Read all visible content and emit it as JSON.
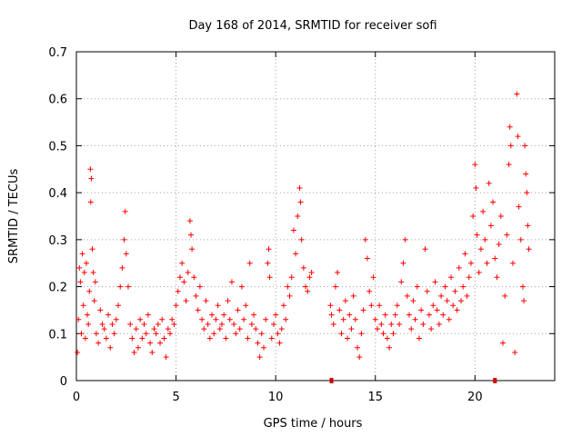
{
  "chart_data": {
    "type": "scatter",
    "title": "Day 168 of 2014, SRMTID for receiver sofi",
    "xlabel": "GPS time / hours",
    "ylabel": "SRMTID / TECUs",
    "xlim": [
      0,
      24
    ],
    "ylim": [
      0,
      0.7
    ],
    "xticks": [
      0,
      5,
      10,
      15,
      20
    ],
    "xtick_labels": [
      "0",
      "5",
      "10",
      "15",
      "20"
    ],
    "yticks": [
      0,
      0.1,
      0.2,
      0.3,
      0.4,
      0.5,
      0.6,
      0.7
    ],
    "ytick_labels": [
      "0",
      "0.1",
      "0.2",
      "0.3",
      "0.4",
      "0.5",
      "0.6",
      "0.7"
    ],
    "grid": true,
    "marker": "plus",
    "color": "#ff0000",
    "series": [
      {
        "name": "SRMTID",
        "points": [
          [
            0.05,
            0.06
          ],
          [
            0.1,
            0.13
          ],
          [
            0.15,
            0.24
          ],
          [
            0.2,
            0.21
          ],
          [
            0.25,
            0.1
          ],
          [
            0.3,
            0.27
          ],
          [
            0.35,
            0.16
          ],
          [
            0.4,
            0.23
          ],
          [
            0.45,
            0.09
          ],
          [
            0.5,
            0.25
          ],
          [
            0.55,
            0.14
          ],
          [
            0.6,
            0.12
          ],
          [
            0.65,
            0.19
          ],
          [
            0.7,
            0.45
          ],
          [
            0.72,
            0.38
          ],
          [
            0.75,
            0.43
          ],
          [
            0.8,
            0.28
          ],
          [
            0.85,
            0.23
          ],
          [
            0.9,
            0.17
          ],
          [
            0.95,
            0.21
          ],
          [
            1.0,
            0.1
          ],
          [
            1.1,
            0.08
          ],
          [
            1.2,
            0.15
          ],
          [
            1.3,
            0.12
          ],
          [
            1.4,
            0.11
          ],
          [
            1.5,
            0.09
          ],
          [
            1.6,
            0.14
          ],
          [
            1.7,
            0.07
          ],
          [
            1.8,
            0.12
          ],
          [
            1.9,
            0.1
          ],
          [
            2.0,
            0.13
          ],
          [
            2.1,
            0.16
          ],
          [
            2.2,
            0.2
          ],
          [
            2.3,
            0.24
          ],
          [
            2.4,
            0.3
          ],
          [
            2.45,
            0.36
          ],
          [
            2.5,
            0.27
          ],
          [
            2.6,
            0.2
          ],
          [
            2.7,
            0.12
          ],
          [
            2.8,
            0.09
          ],
          [
            2.9,
            0.06
          ],
          [
            3.0,
            0.11
          ],
          [
            3.1,
            0.07
          ],
          [
            3.2,
            0.13
          ],
          [
            3.3,
            0.09
          ],
          [
            3.4,
            0.12
          ],
          [
            3.5,
            0.1
          ],
          [
            3.6,
            0.14
          ],
          [
            3.7,
            0.08
          ],
          [
            3.8,
            0.06
          ],
          [
            3.9,
            0.11
          ],
          [
            4.0,
            0.1
          ],
          [
            4.1,
            0.12
          ],
          [
            4.2,
            0.08
          ],
          [
            4.3,
            0.13
          ],
          [
            4.4,
            0.09
          ],
          [
            4.5,
            0.05
          ],
          [
            4.6,
            0.11
          ],
          [
            4.7,
            0.1
          ],
          [
            4.8,
            0.13
          ],
          [
            4.9,
            0.12
          ],
          [
            5.0,
            0.16
          ],
          [
            5.1,
            0.19
          ],
          [
            5.2,
            0.22
          ],
          [
            5.3,
            0.25
          ],
          [
            5.4,
            0.21
          ],
          [
            5.5,
            0.17
          ],
          [
            5.6,
            0.23
          ],
          [
            5.7,
            0.34
          ],
          [
            5.75,
            0.31
          ],
          [
            5.8,
            0.28
          ],
          [
            5.9,
            0.22
          ],
          [
            6.0,
            0.18
          ],
          [
            6.1,
            0.15
          ],
          [
            6.2,
            0.2
          ],
          [
            6.3,
            0.13
          ],
          [
            6.4,
            0.11
          ],
          [
            6.5,
            0.17
          ],
          [
            6.6,
            0.12
          ],
          [
            6.7,
            0.09
          ],
          [
            6.8,
            0.14
          ],
          [
            6.9,
            0.1
          ],
          [
            7.0,
            0.13
          ],
          [
            7.1,
            0.16
          ],
          [
            7.2,
            0.11
          ],
          [
            7.3,
            0.12
          ],
          [
            7.4,
            0.14
          ],
          [
            7.5,
            0.09
          ],
          [
            7.6,
            0.17
          ],
          [
            7.7,
            0.13
          ],
          [
            7.8,
            0.21
          ],
          [
            7.9,
            0.12
          ],
          [
            8.0,
            0.1
          ],
          [
            8.1,
            0.15
          ],
          [
            8.2,
            0.11
          ],
          [
            8.3,
            0.2
          ],
          [
            8.4,
            0.13
          ],
          [
            8.5,
            0.16
          ],
          [
            8.6,
            0.09
          ],
          [
            8.7,
            0.25
          ],
          [
            8.8,
            0.12
          ],
          [
            8.9,
            0.14
          ],
          [
            9.0,
            0.11
          ],
          [
            9.1,
            0.08
          ],
          [
            9.2,
            0.05
          ],
          [
            9.3,
            0.1
          ],
          [
            9.4,
            0.07
          ],
          [
            9.5,
            0.13
          ],
          [
            9.6,
            0.25
          ],
          [
            9.65,
            0.28
          ],
          [
            9.7,
            0.22
          ],
          [
            9.8,
            0.09
          ],
          [
            9.9,
            0.12
          ],
          [
            10.0,
            0.14
          ],
          [
            10.1,
            0.1
          ],
          [
            10.2,
            0.08
          ],
          [
            10.3,
            0.11
          ],
          [
            10.4,
            0.16
          ],
          [
            10.5,
            0.13
          ],
          [
            10.6,
            0.2
          ],
          [
            10.7,
            0.18
          ],
          [
            10.8,
            0.22
          ],
          [
            10.9,
            0.32
          ],
          [
            11.0,
            0.27
          ],
          [
            11.1,
            0.35
          ],
          [
            11.2,
            0.41
          ],
          [
            11.25,
            0.38
          ],
          [
            11.3,
            0.3
          ],
          [
            11.4,
            0.24
          ],
          [
            11.5,
            0.2
          ],
          [
            11.6,
            0.19
          ],
          [
            11.7,
            0.22
          ],
          [
            11.8,
            0.23
          ],
          [
            12.75,
            0.16
          ],
          [
            12.8,
            0.14
          ],
          [
            12.9,
            0.12
          ],
          [
            13.0,
            0.2
          ],
          [
            13.1,
            0.23
          ],
          [
            13.2,
            0.15
          ],
          [
            13.3,
            0.1
          ],
          [
            13.4,
            0.13
          ],
          [
            13.5,
            0.17
          ],
          [
            13.6,
            0.09
          ],
          [
            13.7,
            0.14
          ],
          [
            13.8,
            0.11
          ],
          [
            13.9,
            0.18
          ],
          [
            14.0,
            0.13
          ],
          [
            14.1,
            0.07
          ],
          [
            14.2,
            0.05
          ],
          [
            14.3,
            0.1
          ],
          [
            14.4,
            0.15
          ],
          [
            14.5,
            0.3
          ],
          [
            14.6,
            0.26
          ],
          [
            14.7,
            0.19
          ],
          [
            14.8,
            0.16
          ],
          [
            14.9,
            0.22
          ],
          [
            15.0,
            0.13
          ],
          [
            15.1,
            0.11
          ],
          [
            15.2,
            0.16
          ],
          [
            15.3,
            0.12
          ],
          [
            15.4,
            0.1
          ],
          [
            15.5,
            0.14
          ],
          [
            15.6,
            0.09
          ],
          [
            15.7,
            0.07
          ],
          [
            15.8,
            0.12
          ],
          [
            15.9,
            0.1
          ],
          [
            16.0,
            0.14
          ],
          [
            16.1,
            0.16
          ],
          [
            16.2,
            0.12
          ],
          [
            16.3,
            0.21
          ],
          [
            16.4,
            0.25
          ],
          [
            16.5,
            0.3
          ],
          [
            16.6,
            0.18
          ],
          [
            16.7,
            0.14
          ],
          [
            16.8,
            0.11
          ],
          [
            16.9,
            0.17
          ],
          [
            17.0,
            0.13
          ],
          [
            17.1,
            0.2
          ],
          [
            17.2,
            0.09
          ],
          [
            17.3,
            0.15
          ],
          [
            17.4,
            0.12
          ],
          [
            17.5,
            0.28
          ],
          [
            17.6,
            0.19
          ],
          [
            17.7,
            0.14
          ],
          [
            17.8,
            0.11
          ],
          [
            17.9,
            0.16
          ],
          [
            18.0,
            0.21
          ],
          [
            18.1,
            0.15
          ],
          [
            18.2,
            0.12
          ],
          [
            18.3,
            0.18
          ],
          [
            18.4,
            0.14
          ],
          [
            18.5,
            0.2
          ],
          [
            18.6,
            0.17
          ],
          [
            18.7,
            0.13
          ],
          [
            18.8,
            0.22
          ],
          [
            18.9,
            0.16
          ],
          [
            19.0,
            0.19
          ],
          [
            19.1,
            0.15
          ],
          [
            19.2,
            0.24
          ],
          [
            19.3,
            0.17
          ],
          [
            19.4,
            0.2
          ],
          [
            19.5,
            0.27
          ],
          [
            19.6,
            0.18
          ],
          [
            19.7,
            0.22
          ],
          [
            19.8,
            0.25
          ],
          [
            19.9,
            0.35
          ],
          [
            20.0,
            0.46
          ],
          [
            20.05,
            0.41
          ],
          [
            20.1,
            0.31
          ],
          [
            20.2,
            0.23
          ],
          [
            20.3,
            0.28
          ],
          [
            20.4,
            0.36
          ],
          [
            20.5,
            0.3
          ],
          [
            20.6,
            0.25
          ],
          [
            20.7,
            0.42
          ],
          [
            20.8,
            0.33
          ],
          [
            20.9,
            0.38
          ],
          [
            21.0,
            0.26
          ],
          [
            21.1,
            0.22
          ],
          [
            21.2,
            0.29
          ],
          [
            21.3,
            0.35
          ],
          [
            21.4,
            0.08
          ],
          [
            21.5,
            0.18
          ],
          [
            21.6,
            0.31
          ],
          [
            21.7,
            0.46
          ],
          [
            21.75,
            0.54
          ],
          [
            21.8,
            0.5
          ],
          [
            21.9,
            0.25
          ],
          [
            22.0,
            0.06
          ],
          [
            22.1,
            0.61
          ],
          [
            22.15,
            0.52
          ],
          [
            22.2,
            0.37
          ],
          [
            22.3,
            0.3
          ],
          [
            22.4,
            0.2
          ],
          [
            22.45,
            0.17
          ],
          [
            22.5,
            0.5
          ],
          [
            22.55,
            0.44
          ],
          [
            22.6,
            0.4
          ],
          [
            22.65,
            0.33
          ],
          [
            22.7,
            0.28
          ]
        ]
      }
    ],
    "gap_markers": [
      12.8,
      21.0
    ]
  }
}
